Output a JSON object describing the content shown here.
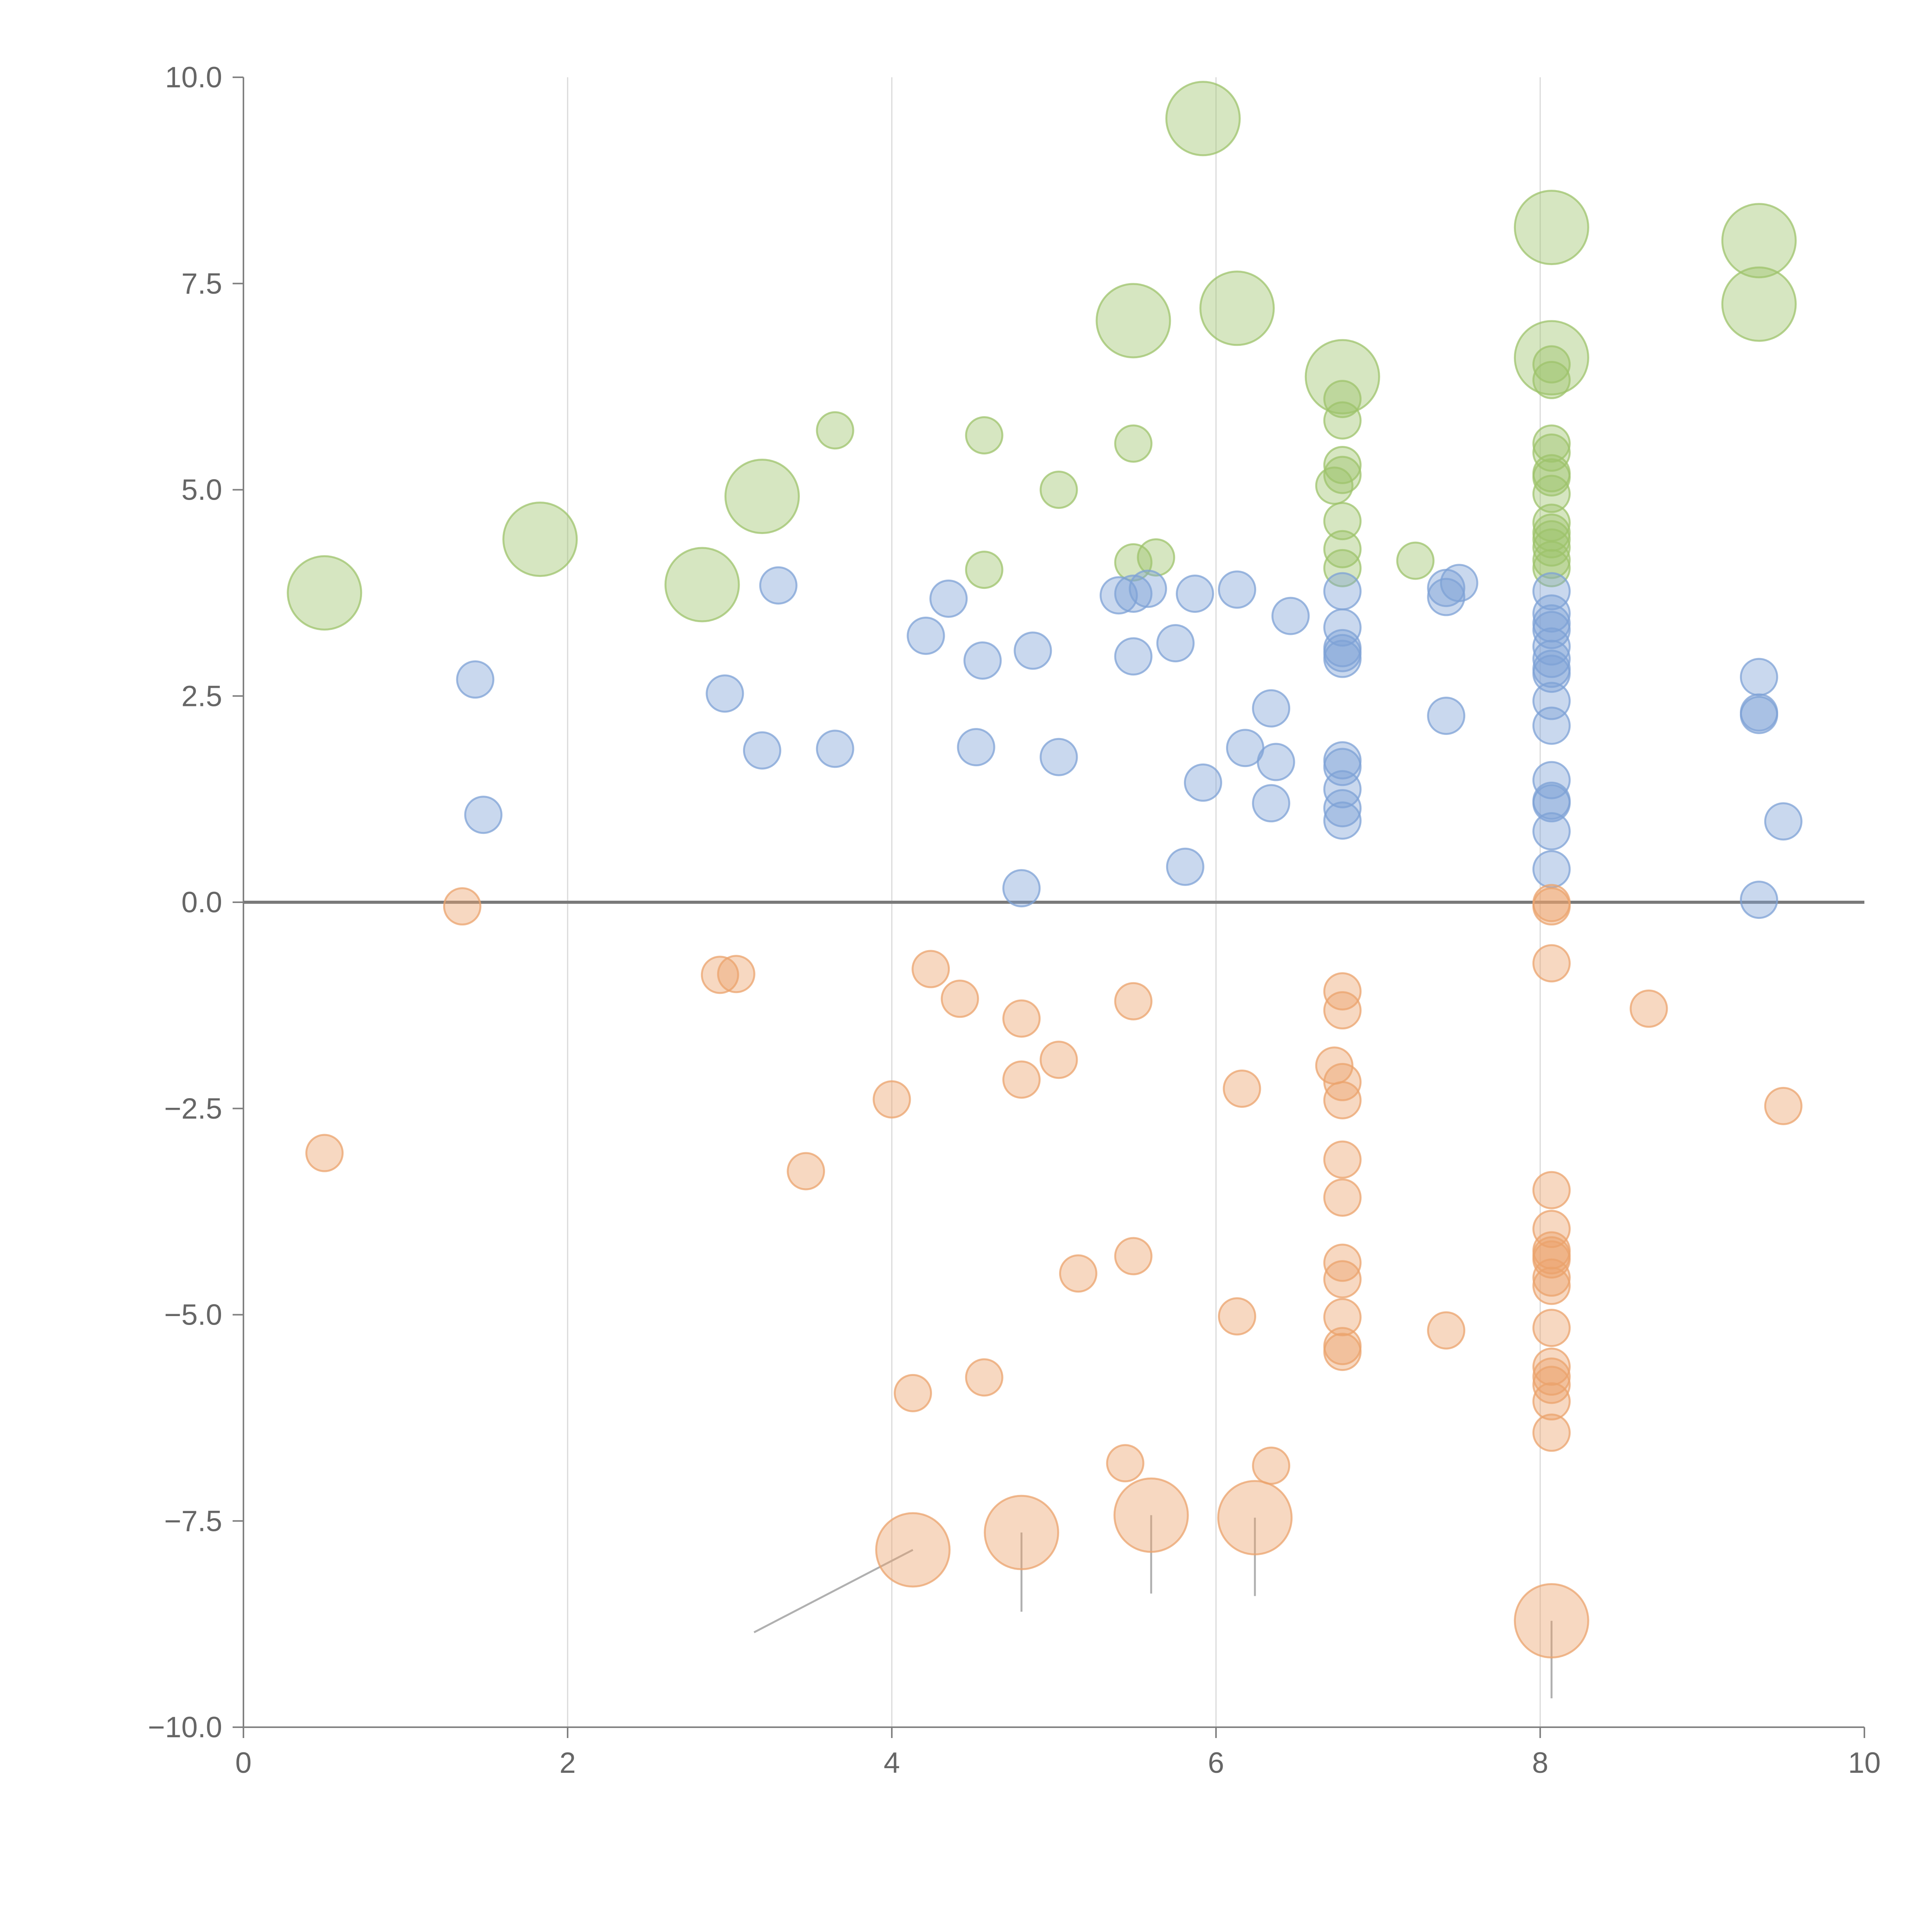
{
  "chart_data": {
    "type": "scatter",
    "title": "",
    "xlabel": "",
    "ylabel": "",
    "xlim": [
      0,
      10
    ],
    "ylim": [
      -10,
      10
    ],
    "grid": "vertical",
    "x_ticks": [
      "0",
      "2",
      "4",
      "6",
      "8",
      "10"
    ],
    "y_ticks": [
      "10.0",
      "7.5",
      "5.0",
      "2.5",
      "0.0",
      "−2.5",
      "−5.0",
      "−7.5",
      "−10.0"
    ],
    "x_tick_values": [
      0,
      2,
      4,
      6,
      8,
      10
    ],
    "y_tick_values": [
      10,
      7.5,
      5,
      2.5,
      0,
      -2.5,
      -5,
      -7.5,
      -10
    ],
    "zero_line": 0,
    "series": [
      {
        "name": "green",
        "color": "#9dc36b",
        "points": [
          {
            "x": 0.5,
            "y": 3.75,
            "size": 2
          },
          {
            "x": 1.83,
            "y": 4.4,
            "size": 2
          },
          {
            "x": 2.83,
            "y": 3.85,
            "size": 2
          },
          {
            "x": 3.2,
            "y": 4.92,
            "size": 2
          },
          {
            "x": 3.65,
            "y": 5.72,
            "size": 1
          },
          {
            "x": 4.57,
            "y": 5.66,
            "size": 1
          },
          {
            "x": 4.57,
            "y": 4.03,
            "size": 1
          },
          {
            "x": 5.03,
            "y": 5.0,
            "size": 1
          },
          {
            "x": 5.49,
            "y": 7.05,
            "size": 2
          },
          {
            "x": 5.49,
            "y": 5.56,
            "size": 1
          },
          {
            "x": 5.49,
            "y": 4.12,
            "size": 1
          },
          {
            "x": 5.63,
            "y": 4.18,
            "size": 1
          },
          {
            "x": 5.92,
            "y": 9.5,
            "size": 2
          },
          {
            "x": 6.13,
            "y": 7.2,
            "size": 2
          },
          {
            "x": 6.78,
            "y": 6.37,
            "size": 2
          },
          {
            "x": 6.78,
            "y": 6.1,
            "size": 1
          },
          {
            "x": 6.78,
            "y": 5.84,
            "size": 1
          },
          {
            "x": 6.78,
            "y": 5.3,
            "size": 1
          },
          {
            "x": 6.78,
            "y": 5.18,
            "size": 1
          },
          {
            "x": 6.73,
            "y": 5.05,
            "size": 1
          },
          {
            "x": 6.78,
            "y": 4.62,
            "size": 1
          },
          {
            "x": 6.78,
            "y": 4.28,
            "size": 1
          },
          {
            "x": 6.78,
            "y": 4.05,
            "size": 1
          },
          {
            "x": 7.23,
            "y": 4.14,
            "size": 1
          },
          {
            "x": 8.07,
            "y": 8.18,
            "size": 2
          },
          {
            "x": 8.07,
            "y": 6.6,
            "size": 2
          },
          {
            "x": 8.07,
            "y": 6.52,
            "size": 1
          },
          {
            "x": 8.07,
            "y": 6.33,
            "size": 1
          },
          {
            "x": 8.07,
            "y": 5.56,
            "size": 1
          },
          {
            "x": 8.07,
            "y": 5.45,
            "size": 1
          },
          {
            "x": 8.07,
            "y": 5.2,
            "size": 1
          },
          {
            "x": 8.07,
            "y": 5.15,
            "size": 1
          },
          {
            "x": 8.07,
            "y": 4.95,
            "size": 1
          },
          {
            "x": 8.07,
            "y": 4.6,
            "size": 1
          },
          {
            "x": 8.07,
            "y": 4.48,
            "size": 1
          },
          {
            "x": 8.07,
            "y": 4.4,
            "size": 1
          },
          {
            "x": 8.07,
            "y": 4.3,
            "size": 1
          },
          {
            "x": 8.07,
            "y": 4.15,
            "size": 1
          },
          {
            "x": 8.07,
            "y": 4.05,
            "size": 1
          },
          {
            "x": 9.35,
            "y": 8.02,
            "size": 2
          },
          {
            "x": 9.35,
            "y": 7.25,
            "size": 2
          }
        ]
      },
      {
        "name": "blue",
        "color": "#7ea2d6",
        "points": [
          {
            "x": 1.43,
            "y": 2.7,
            "size": 1
          },
          {
            "x": 1.48,
            "y": 1.06,
            "size": 1
          },
          {
            "x": 2.97,
            "y": 2.53,
            "size": 1
          },
          {
            "x": 3.2,
            "y": 1.84,
            "size": 1
          },
          {
            "x": 3.3,
            "y": 3.84,
            "size": 1
          },
          {
            "x": 3.65,
            "y": 1.86,
            "size": 1
          },
          {
            "x": 4.21,
            "y": 3.23,
            "size": 1
          },
          {
            "x": 4.35,
            "y": 3.68,
            "size": 1
          },
          {
            "x": 4.52,
            "y": 1.88,
            "size": 1
          },
          {
            "x": 4.56,
            "y": 2.93,
            "size": 1
          },
          {
            "x": 4.8,
            "y": 0.17,
            "size": 1
          },
          {
            "x": 4.87,
            "y": 3.05,
            "size": 1
          },
          {
            "x": 5.03,
            "y": 1.76,
            "size": 1
          },
          {
            "x": 5.4,
            "y": 3.72,
            "size": 1
          },
          {
            "x": 5.49,
            "y": 3.74,
            "size": 1
          },
          {
            "x": 5.49,
            "y": 2.98,
            "size": 1
          },
          {
            "x": 5.58,
            "y": 3.8,
            "size": 1
          },
          {
            "x": 5.75,
            "y": 3.14,
            "size": 1
          },
          {
            "x": 5.81,
            "y": 0.43,
            "size": 1
          },
          {
            "x": 5.87,
            "y": 3.74,
            "size": 1
          },
          {
            "x": 5.92,
            "y": 1.45,
            "size": 1
          },
          {
            "x": 6.13,
            "y": 3.79,
            "size": 1
          },
          {
            "x": 6.18,
            "y": 1.87,
            "size": 1
          },
          {
            "x": 6.34,
            "y": 2.35,
            "size": 1
          },
          {
            "x": 6.34,
            "y": 1.2,
            "size": 1
          },
          {
            "x": 6.37,
            "y": 1.7,
            "size": 1
          },
          {
            "x": 6.46,
            "y": 3.47,
            "size": 1
          },
          {
            "x": 6.78,
            "y": 3.77,
            "size": 1
          },
          {
            "x": 6.78,
            "y": 3.33,
            "size": 1
          },
          {
            "x": 6.78,
            "y": 3.08,
            "size": 1
          },
          {
            "x": 6.78,
            "y": 3.02,
            "size": 1
          },
          {
            "x": 6.78,
            "y": 2.95,
            "size": 1
          },
          {
            "x": 6.78,
            "y": 1.72,
            "size": 1
          },
          {
            "x": 6.78,
            "y": 1.64,
            "size": 1
          },
          {
            "x": 6.78,
            "y": 1.37,
            "size": 1
          },
          {
            "x": 6.78,
            "y": 1.14,
            "size": 1
          },
          {
            "x": 6.78,
            "y": 0.99,
            "size": 1
          },
          {
            "x": 7.42,
            "y": 3.81,
            "size": 1
          },
          {
            "x": 7.42,
            "y": 3.7,
            "size": 1
          },
          {
            "x": 7.42,
            "y": 2.26,
            "size": 1
          },
          {
            "x": 7.5,
            "y": 3.87,
            "size": 1
          },
          {
            "x": 8.07,
            "y": 3.77,
            "size": 1
          },
          {
            "x": 8.07,
            "y": 3.5,
            "size": 1
          },
          {
            "x": 8.07,
            "y": 3.38,
            "size": 1
          },
          {
            "x": 8.07,
            "y": 3.3,
            "size": 1
          },
          {
            "x": 8.07,
            "y": 3.1,
            "size": 1
          },
          {
            "x": 8.07,
            "y": 2.95,
            "size": 1
          },
          {
            "x": 8.07,
            "y": 2.83,
            "size": 1
          },
          {
            "x": 8.07,
            "y": 2.77,
            "size": 1
          },
          {
            "x": 8.07,
            "y": 2.44,
            "size": 1
          },
          {
            "x": 8.07,
            "y": 2.14,
            "size": 1
          },
          {
            "x": 8.07,
            "y": 1.48,
            "size": 1
          },
          {
            "x": 8.07,
            "y": 1.23,
            "size": 1
          },
          {
            "x": 8.07,
            "y": 1.2,
            "size": 1
          },
          {
            "x": 8.07,
            "y": 0.86,
            "size": 1
          },
          {
            "x": 8.07,
            "y": 0.4,
            "size": 1
          },
          {
            "x": 9.35,
            "y": 2.73,
            "size": 1
          },
          {
            "x": 9.35,
            "y": 2.3,
            "size": 1
          },
          {
            "x": 9.35,
            "y": 2.27,
            "size": 1
          },
          {
            "x": 9.35,
            "y": 0.03,
            "size": 1
          },
          {
            "x": 9.5,
            "y": 0.98,
            "size": 1
          }
        ]
      },
      {
        "name": "orange",
        "color": "#eba36c",
        "points": [
          {
            "x": 0.5,
            "y": -3.04,
            "size": 1
          },
          {
            "x": 1.35,
            "y": -0.05,
            "size": 1
          },
          {
            "x": 2.94,
            "y": -0.88,
            "size": 1
          },
          {
            "x": 3.04,
            "y": -0.87,
            "size": 1
          },
          {
            "x": 3.47,
            "y": -3.26,
            "size": 1
          },
          {
            "x": 4.0,
            "y": -2.39,
            "size": 1
          },
          {
            "x": 4.13,
            "y": -5.95,
            "size": 1
          },
          {
            "x": 4.24,
            "y": -0.81,
            "size": 1
          },
          {
            "x": 4.42,
            "y": -1.17,
            "size": 1
          },
          {
            "x": 4.57,
            "y": -5.76,
            "size": 1
          },
          {
            "x": 4.8,
            "y": -1.41,
            "size": 1
          },
          {
            "x": 4.8,
            "y": -2.15,
            "size": 1
          },
          {
            "x": 5.03,
            "y": -1.91,
            "size": 1
          },
          {
            "x": 5.15,
            "y": -4.5,
            "size": 1
          },
          {
            "x": 5.44,
            "y": -6.8,
            "size": 1
          },
          {
            "x": 5.49,
            "y": -1.2,
            "size": 1
          },
          {
            "x": 5.49,
            "y": -4.29,
            "size": 1
          },
          {
            "x": 6.13,
            "y": -5.02,
            "size": 1
          },
          {
            "x": 6.16,
            "y": -2.26,
            "size": 1
          },
          {
            "x": 6.34,
            "y": -6.83,
            "size": 1
          },
          {
            "x": 6.73,
            "y": -1.98,
            "size": 1
          },
          {
            "x": 6.78,
            "y": -1.08,
            "size": 1
          },
          {
            "x": 6.78,
            "y": -1.31,
            "size": 1
          },
          {
            "x": 6.78,
            "y": -2.18,
            "size": 1
          },
          {
            "x": 6.78,
            "y": -2.4,
            "size": 1
          },
          {
            "x": 6.78,
            "y": -3.12,
            "size": 1
          },
          {
            "x": 6.78,
            "y": -3.58,
            "size": 1
          },
          {
            "x": 6.78,
            "y": -4.37,
            "size": 1
          },
          {
            "x": 6.78,
            "y": -4.57,
            "size": 1
          },
          {
            "x": 6.78,
            "y": -5.03,
            "size": 1
          },
          {
            "x": 6.78,
            "y": -5.38,
            "size": 1
          },
          {
            "x": 6.78,
            "y": -5.45,
            "size": 1
          },
          {
            "x": 7.42,
            "y": -5.19,
            "size": 1
          },
          {
            "x": 8.07,
            "y": -0.01,
            "size": 1
          },
          {
            "x": 8.07,
            "y": -0.05,
            "size": 1
          },
          {
            "x": 8.07,
            "y": -0.74,
            "size": 1
          },
          {
            "x": 8.07,
            "y": -3.49,
            "size": 1
          },
          {
            "x": 8.07,
            "y": -3.96,
            "size": 1
          },
          {
            "x": 8.07,
            "y": -4.22,
            "size": 1
          },
          {
            "x": 8.07,
            "y": -4.28,
            "size": 1
          },
          {
            "x": 8.07,
            "y": -4.33,
            "size": 1
          },
          {
            "x": 8.07,
            "y": -4.55,
            "size": 1
          },
          {
            "x": 8.07,
            "y": -4.65,
            "size": 1
          },
          {
            "x": 8.07,
            "y": -5.16,
            "size": 1
          },
          {
            "x": 8.07,
            "y": -5.63,
            "size": 1
          },
          {
            "x": 8.07,
            "y": -5.75,
            "size": 1
          },
          {
            "x": 8.07,
            "y": -5.85,
            "size": 1
          },
          {
            "x": 8.07,
            "y": -6.05,
            "size": 1
          },
          {
            "x": 8.07,
            "y": -6.43,
            "size": 1
          },
          {
            "x": 8.67,
            "y": -1.29,
            "size": 1
          },
          {
            "x": 9.5,
            "y": -2.47,
            "size": 1
          },
          {
            "x": 4.13,
            "y": -7.85,
            "size": 2
          },
          {
            "x": 4.8,
            "y": -7.64,
            "size": 2
          },
          {
            "x": 5.6,
            "y": -7.43,
            "size": 2
          },
          {
            "x": 6.24,
            "y": -7.46,
            "size": 2
          },
          {
            "x": 8.07,
            "y": -8.71,
            "size": 2
          }
        ],
        "annotations": [
          {
            "x": 4.13,
            "y": -7.85,
            "label_x": 3.15,
            "label_y": -8.85
          },
          {
            "x": 4.8,
            "y": -7.64,
            "label_x": 4.8,
            "label_y": -8.6
          },
          {
            "x": 5.6,
            "y": -7.43,
            "label_x": 5.6,
            "label_y": -8.38
          },
          {
            "x": 6.24,
            "y": -7.46,
            "label_x": 6.24,
            "label_y": -8.41
          },
          {
            "x": 8.07,
            "y": -8.71,
            "label_x": 8.07,
            "label_y": -9.65
          }
        ]
      }
    ]
  }
}
